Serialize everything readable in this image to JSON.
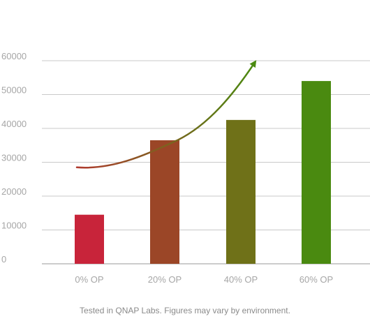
{
  "chart_data": {
    "type": "bar",
    "title": "",
    "xlabel": "",
    "ylabel": "",
    "categories": [
      "0% OP",
      "20% OP",
      "40% OP",
      "60% OP"
    ],
    "values": [
      14500,
      36500,
      42500,
      54000
    ],
    "bar_colors": [
      "#c8243a",
      "#9b4627",
      "#6f7118",
      "#4a8a10"
    ],
    "ylim": [
      0,
      60000
    ],
    "yticks": [
      0,
      10000,
      20000,
      30000,
      40000,
      50000,
      60000
    ],
    "ytick_labels": [
      "0",
      "10000",
      "20000",
      "30000",
      "40000",
      "50000",
      "60000"
    ],
    "grid": true,
    "legend": "none",
    "annotation": {
      "type": "trend-arrow",
      "start": {
        "category": "0% OP",
        "value": 28500
      },
      "mid": {
        "category": "20% OP",
        "value": 36500
      },
      "end": {
        "category": "40% OP",
        "value": 59500
      },
      "start_color": "#b03a2e",
      "end_color": "#4a8a10"
    }
  },
  "footnote": "Tested in QNAP Labs. Figures may vary by environment."
}
